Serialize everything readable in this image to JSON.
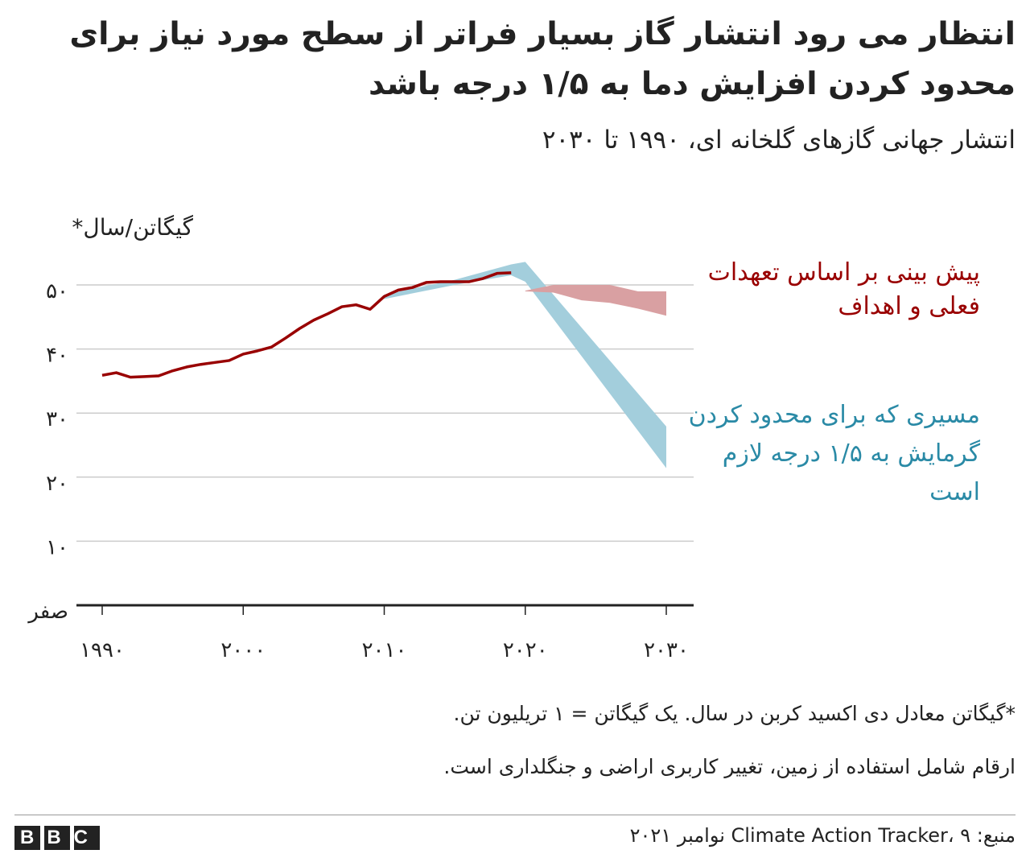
{
  "chart_data": {
    "type": "line",
    "title": "انتظار می رود انتشار گاز بسیار فراتر از سطح مورد نیاز برای محدود کردن افزایش دما به ۱/۵ درجه  باشد",
    "subtitle": "انتشار جهانی گازهای گلخانه ای، ۱۹۹۰ تا ۲۰۳۰",
    "y_label": "گیگاتن/سال*",
    "xlim": [
      1990,
      2030
    ],
    "xticks": [
      {
        "value": 1990,
        "label": "۱۹۹۰"
      },
      {
        "value": 2000,
        "label": "۲۰۰۰"
      },
      {
        "value": 2010,
        "label": "۲۰۱۰"
      },
      {
        "value": 2020,
        "label": "۲۰۲۰"
      },
      {
        "value": 2030,
        "label": "۲۰۳۰"
      }
    ],
    "ylim": [
      0,
      50
    ],
    "yticks": [
      {
        "value": 0,
        "label": "صفر"
      },
      {
        "value": 10,
        "label": "۱۰"
      },
      {
        "value": 20,
        "label": "۲۰"
      },
      {
        "value": 30,
        "label": "۳۰"
      },
      {
        "value": 40,
        "label": "۴۰"
      },
      {
        "value": 50,
        "label": "۵۰"
      }
    ],
    "grid": true,
    "series": [
      {
        "color": "#990000",
        "x": [
          1990,
          1991,
          1992,
          1993,
          1994,
          1995,
          1996,
          1997,
          1998,
          1999,
          2000,
          2001,
          2002,
          2003,
          2004,
          2005,
          2006,
          2007,
          2008,
          2009,
          2010,
          2011,
          2012,
          2013,
          2014,
          2015,
          2016,
          2017,
          2018,
          2019
        ],
        "values": [
          35.9,
          36.3,
          35.6,
          35.7,
          35.8,
          36.6,
          37.2,
          37.6,
          37.9,
          38.2,
          39.2,
          39.7,
          40.3,
          41.7,
          43.2,
          44.5,
          45.5,
          46.6,
          46.9,
          46.2,
          48.2,
          49.2,
          49.6,
          50.4,
          50.5,
          50.5,
          50.5,
          51.0,
          51.8,
          51.9
        ]
      },
      {
        "name": "مسیری که برای محدود کردن گرمایش به ۱/۵ درجه لازم است",
        "color": "#a3cedc",
        "label_color": "#2a8aa6",
        "x": [
          2010,
          2015,
          2019,
          2020,
          2030
        ],
        "upper": [
          48.5,
          50.8,
          53.2,
          53.6,
          27.9
        ],
        "lower": [
          47.8,
          50.0,
          51.5,
          50.5,
          21.4
        ]
      },
      {
        "name": "پیش بینی بر اساس تعهدات فعلی و اهداف",
        "color": "#d9a0a2",
        "label_color": "#990000",
        "x": [
          2020,
          2022,
          2024,
          2026,
          2028,
          2030
        ],
        "upper": [
          49.1,
          50.0,
          50.0,
          50.0,
          49.0,
          49.0
        ],
        "lower": [
          49.0,
          48.8,
          47.6,
          47.2,
          46.3,
          45.2
        ]
      }
    ],
    "footnotes": [
      "*گیگاتن معادل دی  اکسید کربن در سال. یک گیگاتن = ۱ تریلیون تن.",
      "ارقام شامل استفاده از زمین، تغییر کاربری اراضی و جنگلداری است."
    ],
    "source": "منبع: Climate Action Tracker، ۹ نوامبر ۲۰۲۱",
    "logo": "BBC"
  }
}
